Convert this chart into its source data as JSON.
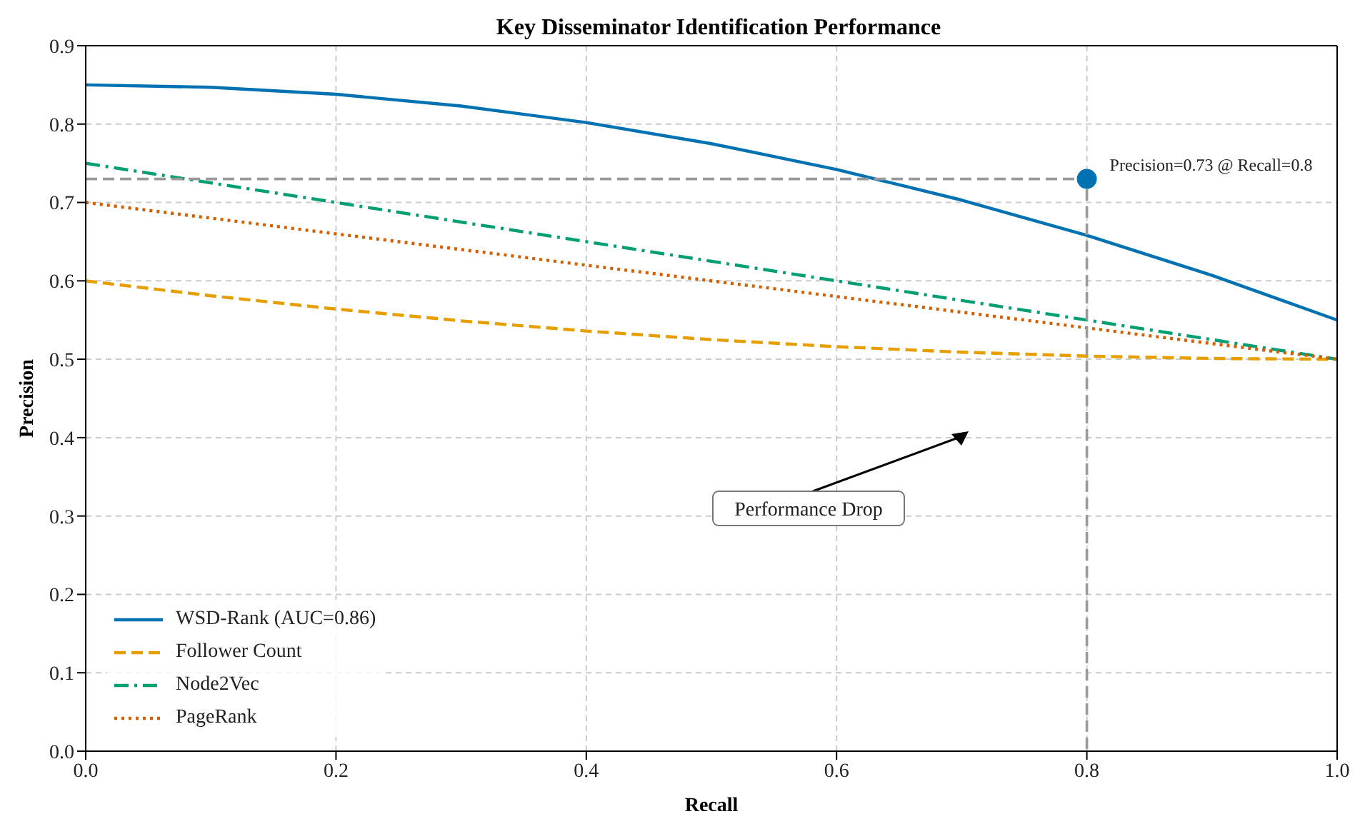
{
  "chart_data": {
    "type": "line",
    "title": "Key Disseminator Identification Performance",
    "xlabel": "Recall",
    "ylabel": "Precision",
    "xlim": [
      0,
      1
    ],
    "ylim": [
      0,
      0.9
    ],
    "xticks": [
      {
        "value": 0,
        "label": "0.0"
      },
      {
        "value": 0.2,
        "label": "0.2"
      },
      {
        "value": 0.4,
        "label": "0.4"
      },
      {
        "value": 0.6,
        "label": "0.6"
      },
      {
        "value": 0.8,
        "label": "0.8"
      },
      {
        "value": 1,
        "label": "1.0"
      }
    ],
    "yticks": [
      {
        "value": 0,
        "label": "0.0"
      },
      {
        "value": 0.1,
        "label": "0.1"
      },
      {
        "value": 0.2,
        "label": "0.2"
      },
      {
        "value": 0.3,
        "label": "0.3"
      },
      {
        "value": 0.4,
        "label": "0.4"
      },
      {
        "value": 0.5,
        "label": "0.5"
      },
      {
        "value": 0.6,
        "label": "0.6"
      },
      {
        "value": 0.7,
        "label": "0.7"
      },
      {
        "value": 0.8,
        "label": "0.8"
      },
      {
        "value": 0.9,
        "label": "0.9"
      }
    ],
    "grid": true,
    "legend": "bottom left",
    "series": [
      {
        "name": "WSD-Rank (AUC=0.86)",
        "color": "#0072b2",
        "line_style": "solid",
        "x": [
          0,
          0.1,
          0.2,
          0.3,
          0.4,
          0.5,
          0.6,
          0.7,
          0.8,
          0.9,
          1
        ],
        "values": [
          0.85,
          0.847,
          0.838,
          0.823,
          0.802,
          0.775,
          0.742,
          0.703,
          0.658,
          0.607,
          0.55
        ]
      },
      {
        "name": "Follower Count",
        "color": "#e69f00",
        "line_style": "dashed",
        "x": [
          0,
          0.1,
          0.2,
          0.3,
          0.4,
          0.5,
          0.6,
          0.7,
          0.8,
          0.9,
          1
        ],
        "values": [
          0.6,
          0.581,
          0.564,
          0.549,
          0.536,
          0.525,
          0.516,
          0.509,
          0.504,
          0.501,
          0.5
        ]
      },
      {
        "name": "Node2Vec",
        "color": "#009e73",
        "line_style": "dashdot",
        "x": [
          0,
          1
        ],
        "values": [
          0.75,
          0.5
        ]
      },
      {
        "name": "PageRank",
        "color": "#d55e00",
        "line_style": "dotted",
        "x": [
          0,
          1
        ],
        "values": [
          0.7,
          0.5
        ]
      },
      {
        "color": "#999999",
        "line_style": "dashed",
        "x": [
          0,
          0.8,
          0.8
        ],
        "values": [
          0.73,
          0.73,
          0
        ]
      },
      {
        "type": "scatter",
        "color": "#0072b2",
        "x": [
          0.8
        ],
        "values": [
          0.73
        ]
      }
    ],
    "annotations": [
      {
        "text": "Precision=0.73 @ Recall=0.8",
        "x": 0.8,
        "y": 0.73
      },
      "Performance Drop"
    ]
  }
}
